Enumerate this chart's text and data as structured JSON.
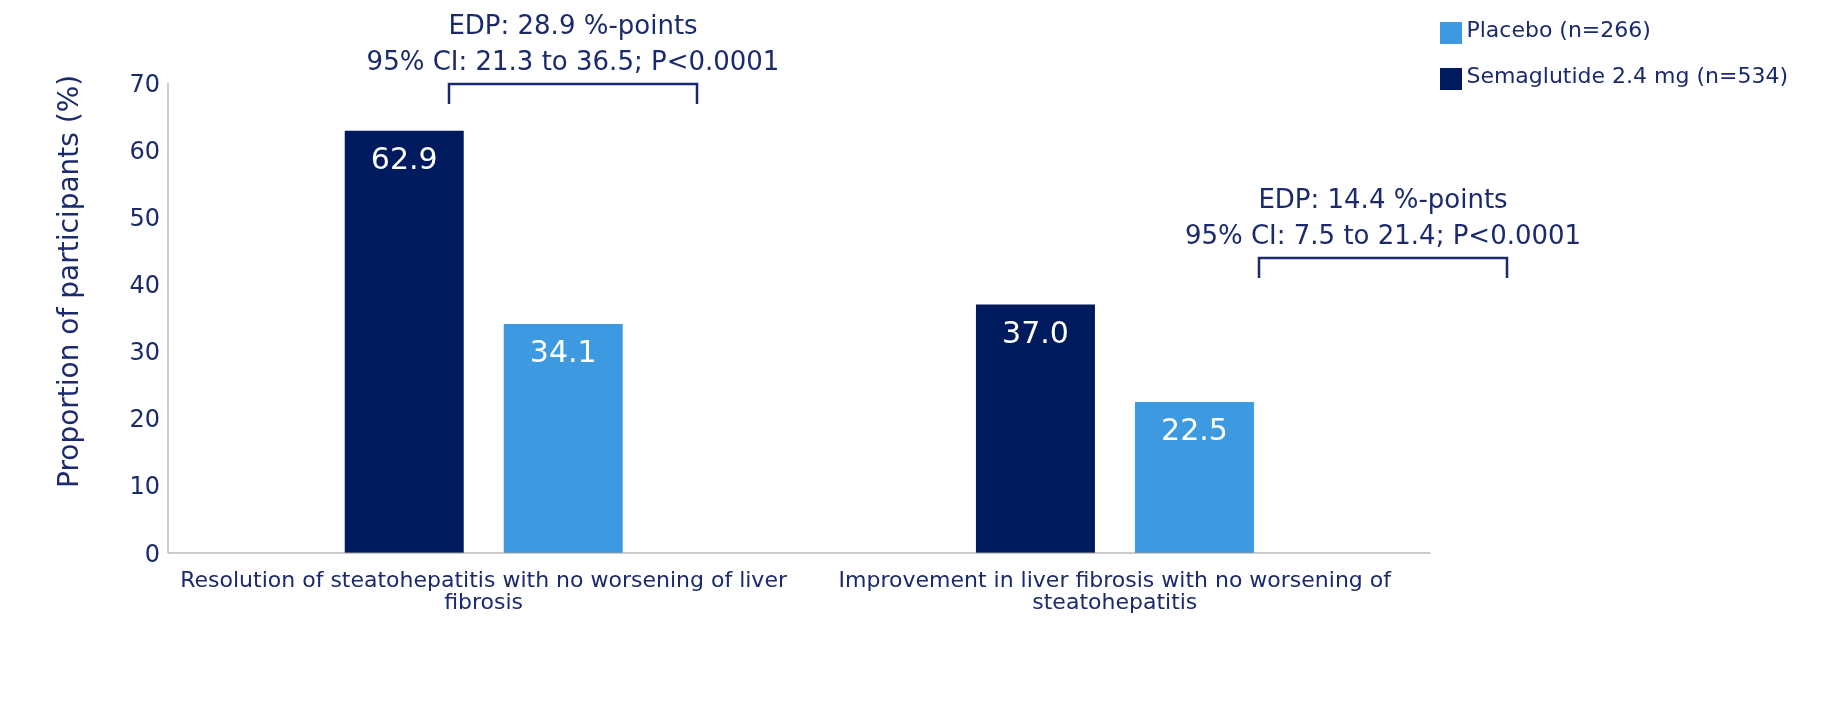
{
  "chart_data": {
    "type": "bar",
    "categories": [
      "Resolution of steatohepatitis with no worsening of liver fibrosis",
      "Improvement in liver fibrosis with no worsening of steatohepatitis"
    ],
    "series": [
      {
        "name": "Semaglutide 2.4 mg (n=534)",
        "color": "#001a5e",
        "values": [
          62.9,
          37.0
        ],
        "value_labels": [
          "62.9",
          "37.0"
        ]
      },
      {
        "name": "Placebo (n=266)",
        "color": "#3d9ae0",
        "values": [
          34.1,
          22.5
        ],
        "value_labels": [
          "34.1",
          "22.5"
        ]
      }
    ],
    "ylabel": "Proportion of participants (%)",
    "ylim": [
      0,
      70
    ],
    "yticks": [
      0,
      10,
      20,
      30,
      40,
      50,
      60,
      70
    ],
    "annotations": [
      "EDP: 28.9 %-points\n95% CI: 21.3 to 36.5; P<0.0001",
      "EDP: 14.4 %-points\n95% CI: 7.5 to 21.4; P<0.0001"
    ],
    "grid": false,
    "legend": "top right"
  }
}
